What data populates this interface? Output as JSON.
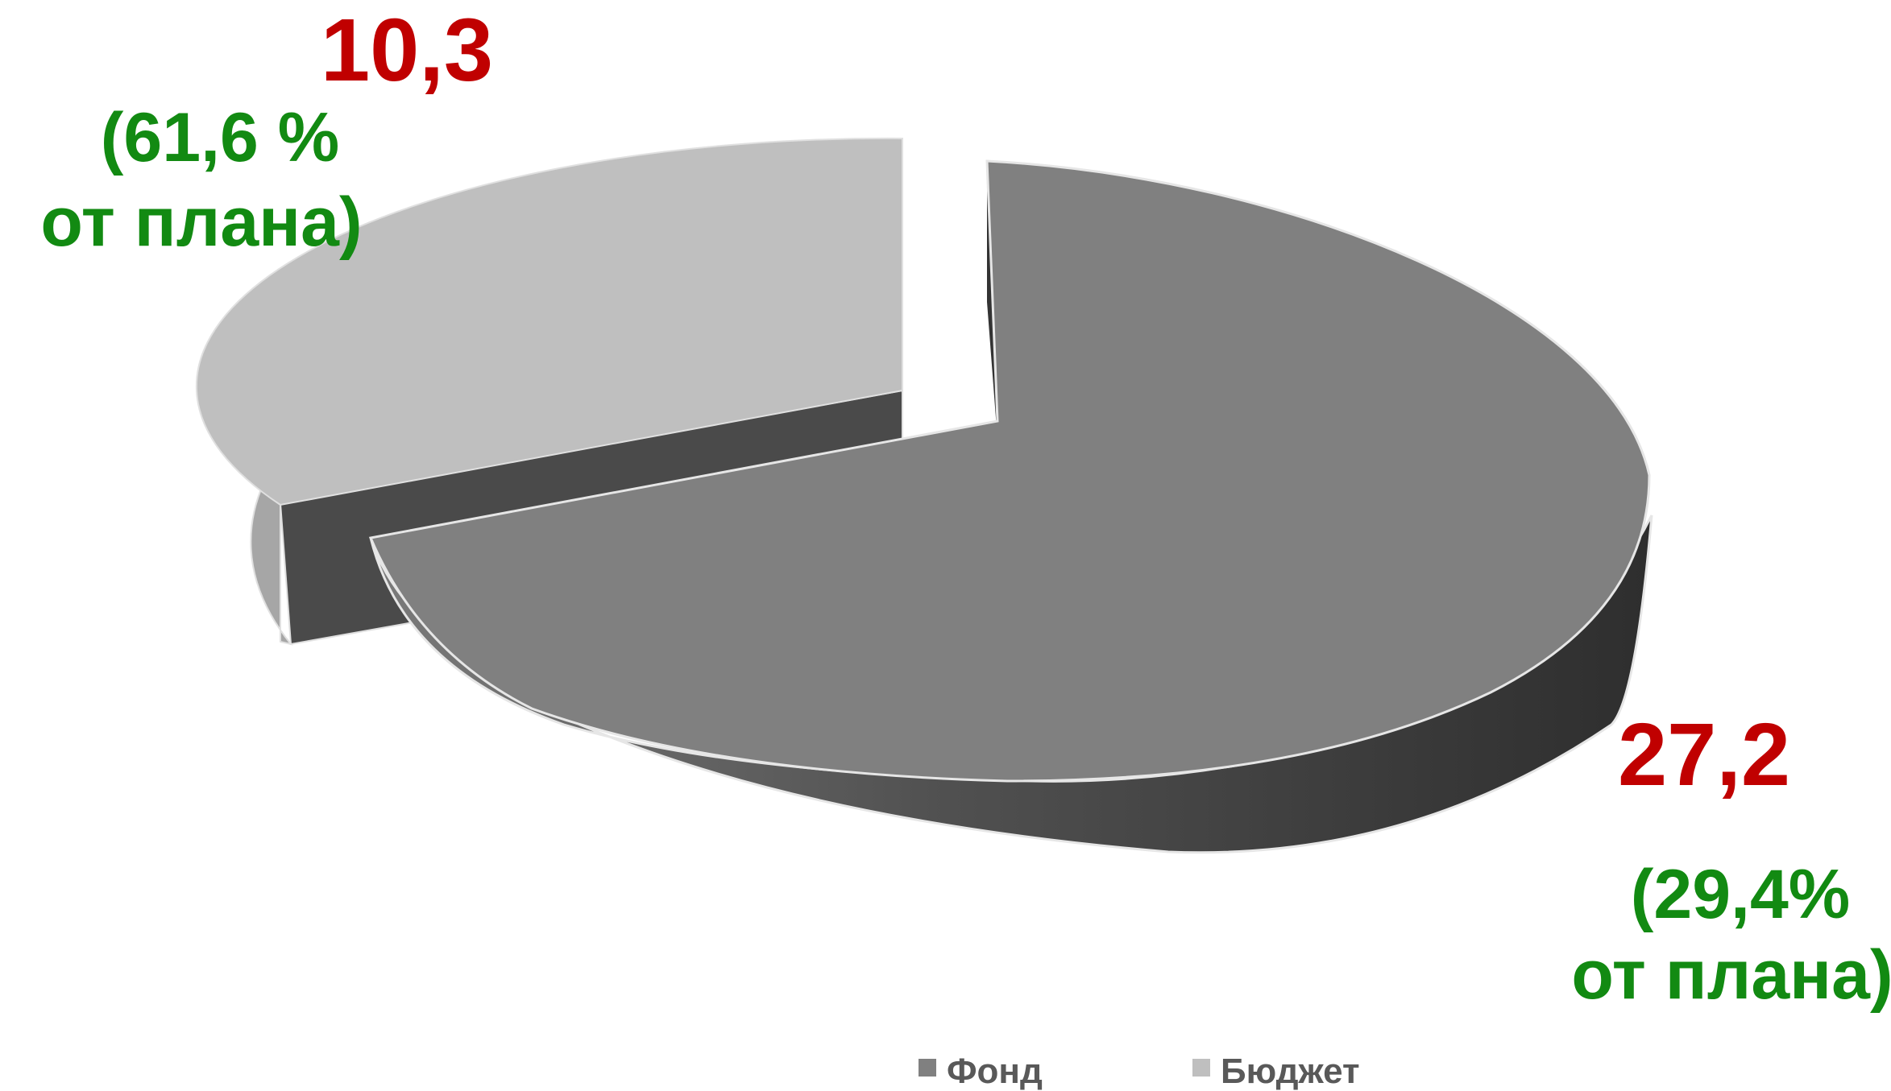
{
  "chart_data": {
    "type": "pie",
    "is_3d": true,
    "exploded": true,
    "categories": [
      "Фонд",
      "Бюджет"
    ],
    "values": [
      27.2,
      10.3
    ],
    "colors": {
      "Фонд": "#808080",
      "Бюджет": "#bfbfbf",
      "side_dark": "#333333",
      "side_mid": "#4a4a4a",
      "value_label": "#c00000",
      "percent_label": "#128a12"
    },
    "slices": [
      {
        "name": "Фонд",
        "value": 27.2,
        "value_label": "27,2",
        "percent_label_line1": "(29,4%",
        "percent_label_line2": "от плана)"
      },
      {
        "name": "Бюджет",
        "value": 10.3,
        "value_label": "10,3",
        "percent_label_line1": "(61,6 %",
        "percent_label_line2": "от плана)"
      }
    ],
    "legend": {
      "position": "bottom",
      "items": [
        {
          "label": "Фонд",
          "color": "#808080"
        },
        {
          "label": "Бюджет",
          "color": "#bfbfbf"
        }
      ]
    }
  }
}
